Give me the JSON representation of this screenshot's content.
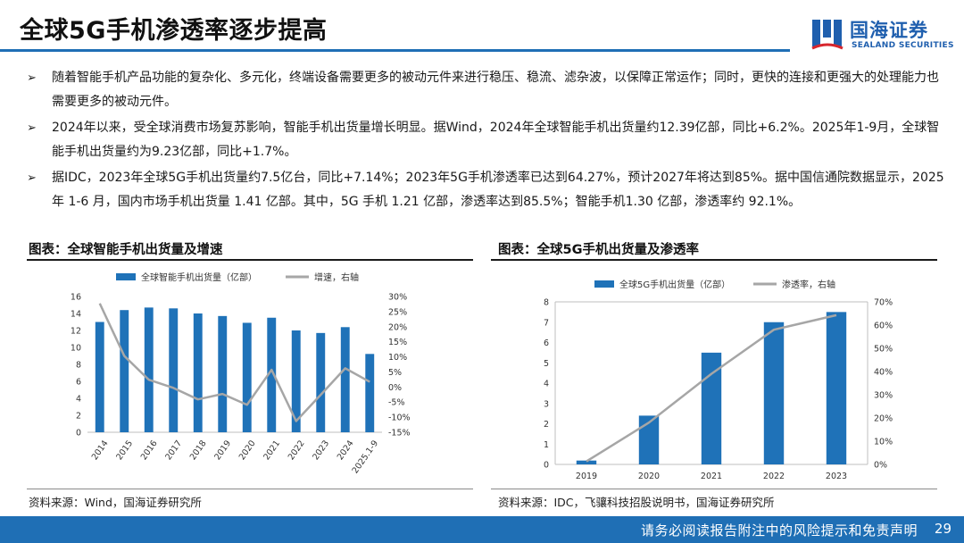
{
  "page": {
    "title": "全球5G手机渗透率逐步提高",
    "footer_text": "请务必阅读报告附注中的风险提示和免责声明",
    "page_number": "29"
  },
  "logo": {
    "cn": "国海证券",
    "en": "SEALAND SECURITIES"
  },
  "bullets": [
    {
      "mark": "➢",
      "text": "随着智能手机产品功能的复杂化、多元化，终端设备需要更多的被动元件来进行稳压、稳流、滤杂波，以保障正常运作；同时，更快的连接和更强大的处理能力也需要更多的被动元件。"
    },
    {
      "mark": "➢",
      "text": "2024年以来，受全球消费市场复苏影响，智能手机出货量增长明显。据Wind，2024年全球智能手机出货量约12.39亿部，同比+6.2%。2025年1-9月，全球智能手机出货量约为9.23亿部，同比+1.7%。"
    },
    {
      "mark": "➢",
      "text": "据IDC，2023年全球5G手机出货量约7.5亿台，同比+7.14%；2023年5G手机渗透率已达到64.27%，预计2027年将达到85%。据中国信通院数据显示，2025 年 1-6 月，国内市场手机出货量 1.41 亿部。其中，5G 手机 1.21 亿部，渗透率达到85.5%；智能手机1.30 亿部，渗透率约 92.1%。"
    }
  ],
  "left_panel": {
    "title": "图表：全球智能手机出货量及增速",
    "source": "资料来源：Wind，国海证券研究所"
  },
  "right_panel": {
    "title": "图表：全球5G手机出货量及渗透率",
    "source": "资料来源：IDC，飞骧科技招股说明书，国海证券研究所"
  },
  "chart_data": [
    {
      "type": "bar",
      "categories": [
        "2014",
        "2015",
        "2016",
        "2017",
        "2018",
        "2019",
        "2020",
        "2021",
        "2022",
        "2023",
        "2024",
        "2025.1-9"
      ],
      "series": [
        {
          "name": "全球智能手机出货量（亿部）",
          "type": "bar",
          "axis": "left",
          "color": "#1f72b8",
          "values": [
            13.0,
            14.4,
            14.7,
            14.6,
            14.0,
            13.7,
            12.9,
            13.5,
            12.0,
            11.7,
            12.39,
            9.23
          ]
        },
        {
          "name": "增速，右轴",
          "type": "line",
          "axis": "right",
          "color": "#a6a6a6",
          "values": [
            27.7,
            10.3,
            2.4,
            -0.3,
            -4.1,
            -2.3,
            -5.9,
            5.7,
            -11.3,
            -2.6,
            6.2,
            1.7
          ]
        }
      ],
      "y_left": {
        "min": 0,
        "max": 16,
        "ticks": [
          0,
          2,
          4,
          6,
          8,
          10,
          12,
          14,
          16
        ]
      },
      "y_right": {
        "min": -15,
        "max": 30,
        "ticks": [
          -15,
          -10,
          -5,
          0,
          5,
          10,
          15,
          20,
          25,
          30
        ],
        "unit": "%"
      },
      "legend": "top"
    },
    {
      "type": "bar",
      "categories": [
        "2019",
        "2020",
        "2021",
        "2022",
        "2023"
      ],
      "series": [
        {
          "name": "全球5G手机出货量（亿部）",
          "type": "bar",
          "axis": "left",
          "color": "#1f72b8",
          "values": [
            0.19,
            2.4,
            5.5,
            7.0,
            7.5
          ]
        },
        {
          "name": "渗透率，右轴",
          "type": "line",
          "axis": "right",
          "color": "#a6a6a6",
          "values": [
            1.3,
            18.0,
            39.0,
            58.0,
            64.27
          ]
        }
      ],
      "y_left": {
        "min": 0,
        "max": 8,
        "ticks": [
          0,
          1,
          2,
          3,
          4,
          5,
          6,
          7,
          8
        ]
      },
      "y_right": {
        "min": 0,
        "max": 70,
        "ticks": [
          0,
          10,
          20,
          30,
          40,
          50,
          60,
          70
        ],
        "unit": "%"
      },
      "legend": "top"
    }
  ]
}
